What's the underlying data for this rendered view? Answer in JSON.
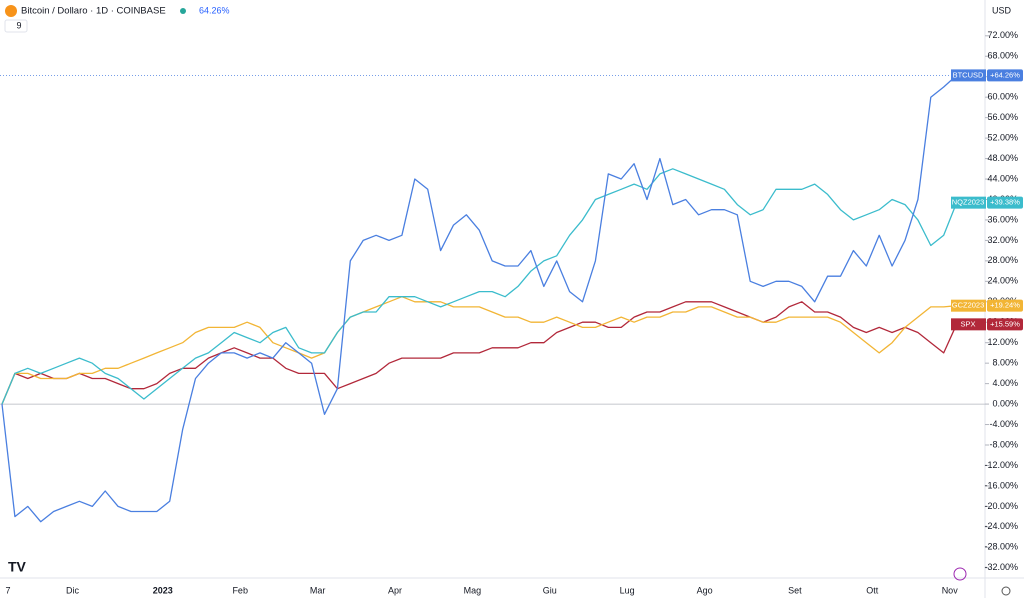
{
  "header": {
    "symbol": "Bitcoin / Dollaro · 1D · COINBASE",
    "change": "64.26%",
    "indicator_count": "9",
    "currency": "USD"
  },
  "chart_data": {
    "type": "line",
    "categories": [
      "7",
      null,
      null,
      null,
      null,
      "Dic",
      null,
      null,
      null,
      null,
      null,
      null,
      "2023",
      null,
      null,
      null,
      null,
      null,
      "Feb",
      null,
      null,
      null,
      null,
      null,
      "Mar",
      null,
      null,
      null,
      null,
      null,
      "Apr",
      null,
      null,
      null,
      null,
      null,
      "Mag",
      null,
      null,
      null,
      null,
      null,
      "Giu",
      null,
      null,
      null,
      null,
      null,
      "Lug",
      null,
      null,
      null,
      null,
      null,
      "Ago",
      null,
      null,
      null,
      null,
      null,
      null,
      "Set",
      null,
      null,
      null,
      null,
      null,
      "Ott",
      null,
      null,
      null,
      null,
      null,
      "Nov",
      null
    ],
    "ylim": [
      -34,
      79
    ],
    "yticks": [
      {
        "value": -32,
        "label": "-32.00%"
      },
      {
        "value": -28,
        "label": "-28.00%"
      },
      {
        "value": -24,
        "label": "-24.00%"
      },
      {
        "value": -20,
        "label": "-20.00%"
      },
      {
        "value": -16,
        "label": "-16.00%"
      },
      {
        "value": -12,
        "label": "-12.00%"
      },
      {
        "value": -8,
        "label": "-8.00%"
      },
      {
        "value": -4,
        "label": "-4.00%"
      },
      {
        "value": 0,
        "label": "0.00%"
      },
      {
        "value": 4,
        "label": "4.00%"
      },
      {
        "value": 8,
        "label": "8.00%"
      },
      {
        "value": 12,
        "label": "12.00%"
      },
      {
        "value": 16,
        "label": "16.00%"
      },
      {
        "value": 20,
        "label": "20.00%"
      },
      {
        "value": 24,
        "label": "24.00%"
      },
      {
        "value": 28,
        "label": "28.00%"
      },
      {
        "value": 32,
        "label": "32.00%"
      },
      {
        "value": 36,
        "label": "36.00%"
      },
      {
        "value": 40,
        "label": "40.00%"
      },
      {
        "value": 44,
        "label": "44.00%"
      },
      {
        "value": 48,
        "label": "48.00%"
      },
      {
        "value": 52,
        "label": "52.00%"
      },
      {
        "value": 56,
        "label": "56.00%"
      },
      {
        "value": 60,
        "label": "60.00%"
      },
      {
        "value": 64,
        "label": "64.00%"
      },
      {
        "value": 68,
        "label": "68.00%"
      },
      {
        "value": 72,
        "label": "72.00%"
      }
    ],
    "grid": false,
    "series": [
      {
        "name": "BTCUSD",
        "color": "#4a7fe0",
        "last_label": "+64.26%",
        "price_line": true,
        "values": [
          0,
          -22,
          -20,
          -23,
          -21,
          -20,
          -19,
          -20,
          -17,
          -20,
          -21,
          -21,
          -21,
          -19,
          -5,
          5,
          8,
          10,
          10,
          9,
          10,
          9,
          12,
          10,
          8,
          -2,
          3,
          28,
          32,
          33,
          32,
          33,
          44,
          42,
          30,
          35,
          37,
          34,
          28,
          27,
          27,
          30,
          23,
          28,
          22,
          20,
          28,
          45,
          44,
          47,
          40,
          48,
          39,
          40,
          37,
          38,
          38,
          37,
          24,
          23,
          24,
          24,
          23,
          20,
          25,
          25,
          30,
          27,
          33,
          27,
          32,
          40,
          60,
          62,
          64.26
        ]
      },
      {
        "name": "NQZ2023",
        "color": "#3bbccc",
        "last_label": "+39.38%",
        "values": [
          0,
          6,
          7,
          6,
          7,
          8,
          9,
          8,
          6,
          5,
          3,
          1,
          3,
          5,
          7,
          9,
          10,
          12,
          14,
          13,
          12,
          14,
          15,
          11,
          10,
          10,
          14,
          17,
          18,
          18,
          21,
          21,
          21,
          20,
          19,
          20,
          21,
          22,
          22,
          21,
          23,
          26,
          28,
          29,
          33,
          36,
          40,
          41,
          42,
          43,
          42,
          45,
          46,
          45,
          44,
          43,
          42,
          39,
          37,
          38,
          42,
          42,
          42,
          43,
          41,
          38,
          36,
          37,
          38,
          40,
          39,
          36,
          31,
          33,
          39.38
        ]
      },
      {
        "name": "GCZ2023",
        "color": "#f2b535",
        "last_label": "+19.24%",
        "values": [
          0,
          6,
          6,
          5,
          5,
          5,
          6,
          6,
          7,
          7,
          8,
          9,
          10,
          11,
          12,
          14,
          15,
          15,
          15,
          16,
          15,
          12,
          11,
          10,
          9,
          10,
          14,
          17,
          18,
          19,
          20,
          21,
          20,
          20,
          20,
          19,
          19,
          19,
          18,
          17,
          17,
          16,
          16,
          17,
          16,
          15,
          15,
          16,
          17,
          16,
          17,
          17,
          18,
          18,
          19,
          19,
          18,
          17,
          17,
          16,
          16,
          17,
          17,
          17,
          17,
          16,
          14,
          12,
          10,
          12,
          15,
          17,
          19,
          19,
          19.24
        ]
      },
      {
        "name": "SPX",
        "color": "#b2283a",
        "last_label": "+15.59%",
        "values": [
          0,
          6,
          5,
          6,
          5,
          5,
          6,
          5,
          5,
          4,
          3,
          3,
          4,
          6,
          7,
          7,
          9,
          10,
          11,
          10,
          9,
          9,
          7,
          6,
          6,
          6,
          3,
          4,
          5,
          6,
          8,
          9,
          9,
          9,
          9,
          10,
          10,
          10,
          11,
          11,
          11,
          12,
          12,
          14,
          15,
          16,
          16,
          15,
          15,
          17,
          18,
          18,
          19,
          20,
          20,
          20,
          19,
          18,
          17,
          16,
          17,
          19,
          20,
          18,
          18,
          17,
          15,
          14,
          15,
          14,
          15,
          14,
          12,
          10,
          15.59
        ]
      }
    ]
  }
}
